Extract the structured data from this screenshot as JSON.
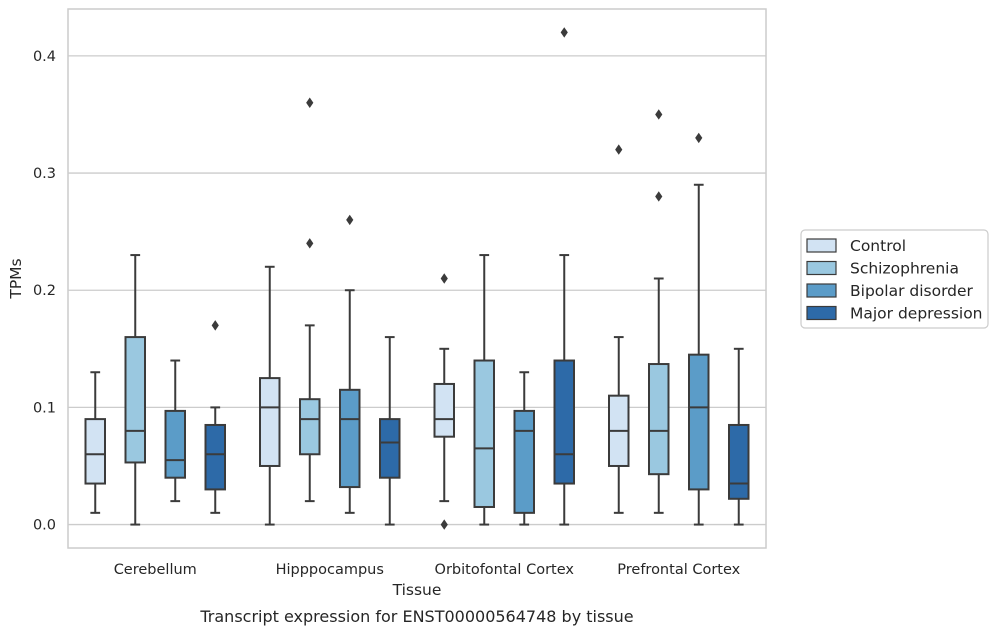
{
  "chart_data": {
    "type": "box",
    "ylabel": "TPMs",
    "xlabel": "Tissue",
    "caption": "Transcript expression for ENST00000564748 by tissue",
    "ylim": [
      -0.02,
      0.44
    ],
    "yticks": [
      0.0,
      0.1,
      0.2,
      0.3,
      0.4
    ],
    "ytick_labels": [
      "0.0",
      "0.1",
      "0.2",
      "0.3",
      "0.4"
    ],
    "grid": true,
    "legend_position": "right",
    "categories": [
      "Cerebellum",
      "Hipppocampus",
      "Orbitofontal Cortex",
      "Prefrontal Cortex"
    ],
    "series": [
      {
        "name": "Control",
        "color": "#d2e3f3",
        "boxes": [
          {
            "whislo": 0.01,
            "q1": 0.035,
            "med": 0.06,
            "q3": 0.09,
            "whishi": 0.13,
            "fliers": []
          },
          {
            "whislo": 0.0,
            "q1": 0.05,
            "med": 0.1,
            "q3": 0.125,
            "whishi": 0.22,
            "fliers": []
          },
          {
            "whislo": 0.02,
            "q1": 0.075,
            "med": 0.09,
            "q3": 0.12,
            "whishi": 0.15,
            "fliers": [
              0.21,
              0.0
            ]
          },
          {
            "whislo": 0.01,
            "q1": 0.05,
            "med": 0.08,
            "q3": 0.11,
            "whishi": 0.16,
            "fliers": [
              0.32
            ]
          }
        ]
      },
      {
        "name": "Schizophrenia",
        "color": "#9ac8e0",
        "boxes": [
          {
            "whislo": 0.0,
            "q1": 0.053,
            "med": 0.08,
            "q3": 0.16,
            "whishi": 0.23,
            "fliers": []
          },
          {
            "whislo": 0.02,
            "q1": 0.06,
            "med": 0.09,
            "q3": 0.107,
            "whishi": 0.17,
            "fliers": [
              0.24,
              0.36
            ]
          },
          {
            "whislo": 0.0,
            "q1": 0.015,
            "med": 0.065,
            "q3": 0.14,
            "whishi": 0.23,
            "fliers": []
          },
          {
            "whislo": 0.01,
            "q1": 0.043,
            "med": 0.08,
            "q3": 0.137,
            "whishi": 0.21,
            "fliers": [
              0.28,
              0.35
            ]
          }
        ]
      },
      {
        "name": "Bipolar disorder",
        "color": "#5b9cc8",
        "boxes": [
          {
            "whislo": 0.02,
            "q1": 0.04,
            "med": 0.055,
            "q3": 0.097,
            "whishi": 0.14,
            "fliers": []
          },
          {
            "whislo": 0.01,
            "q1": 0.032,
            "med": 0.09,
            "q3": 0.115,
            "whishi": 0.2,
            "fliers": [
              0.26
            ]
          },
          {
            "whislo": 0.0,
            "q1": 0.01,
            "med": 0.08,
            "q3": 0.097,
            "whishi": 0.13,
            "fliers": []
          },
          {
            "whislo": 0.0,
            "q1": 0.03,
            "med": 0.1,
            "q3": 0.145,
            "whishi": 0.29,
            "fliers": [
              0.33
            ]
          }
        ]
      },
      {
        "name": "Major depression",
        "color": "#2d6aa8",
        "boxes": [
          {
            "whislo": 0.01,
            "q1": 0.03,
            "med": 0.06,
            "q3": 0.085,
            "whishi": 0.1,
            "fliers": [
              0.17
            ]
          },
          {
            "whislo": 0.0,
            "q1": 0.04,
            "med": 0.07,
            "q3": 0.09,
            "whishi": 0.16,
            "fliers": []
          },
          {
            "whislo": 0.0,
            "q1": 0.035,
            "med": 0.06,
            "q3": 0.14,
            "whishi": 0.23,
            "fliers": [
              0.42
            ]
          },
          {
            "whislo": 0.0,
            "q1": 0.022,
            "med": 0.035,
            "q3": 0.085,
            "whishi": 0.15,
            "fliers": []
          }
        ]
      }
    ]
  }
}
